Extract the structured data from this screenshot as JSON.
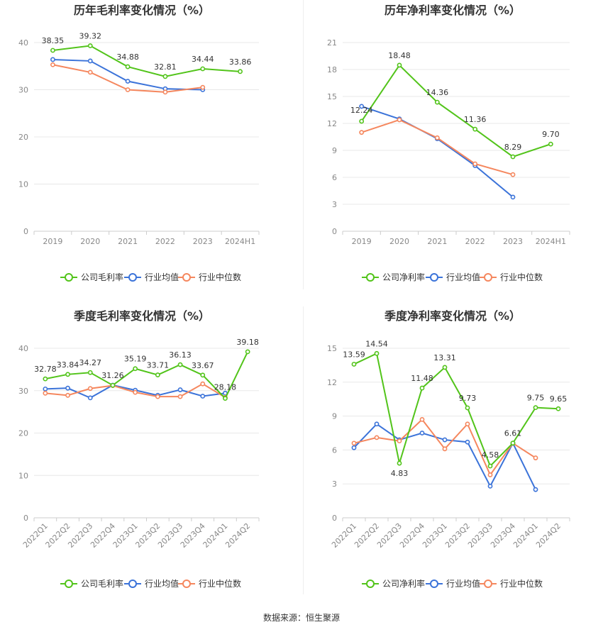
{
  "footer": "数据来源：恒生聚源",
  "colors": {
    "company": "#52c41a",
    "avg": "#3b73d9",
    "median": "#f5875e"
  },
  "chart_data": [
    {
      "type": "line",
      "title": "历年毛利率变化情况（%）",
      "categories": [
        "2019",
        "2020",
        "2021",
        "2022",
        "2023",
        "2024H1"
      ],
      "ylim": [
        0,
        40
      ],
      "yticks": [
        0,
        10,
        20,
        30,
        40
      ],
      "legend": "bottom",
      "series": [
        {
          "name": "公司毛利率",
          "key": "company",
          "values": [
            38.35,
            39.32,
            34.88,
            32.81,
            34.44,
            33.86
          ],
          "labels": [
            "38.35",
            "39.32",
            "34.88",
            "32.81",
            "34.44",
            "33.86"
          ]
        },
        {
          "name": "行业均值",
          "key": "avg",
          "values": [
            36.4,
            36.1,
            31.8,
            30.2,
            30.0,
            null
          ]
        },
        {
          "name": "行业中位数",
          "key": "median",
          "values": [
            35.3,
            33.7,
            30.0,
            29.5,
            30.5,
            null
          ]
        }
      ]
    },
    {
      "type": "line",
      "title": "历年净利率变化情况（%）",
      "categories": [
        "2019",
        "2020",
        "2021",
        "2022",
        "2023",
        "2024H1"
      ],
      "ylim": [
        0,
        21
      ],
      "yticks": [
        0,
        3,
        6,
        9,
        12,
        15,
        18,
        21
      ],
      "legend": "bottom",
      "series": [
        {
          "name": "公司净利率",
          "key": "company",
          "values": [
            12.24,
            18.48,
            14.36,
            11.36,
            8.29,
            9.7
          ],
          "labels": [
            "12.24",
            "18.48",
            "14.36",
            "11.36",
            "8.29",
            "9.70"
          ]
        },
        {
          "name": "行业均值",
          "key": "avg",
          "values": [
            13.9,
            12.5,
            10.3,
            7.3,
            3.8,
            null
          ]
        },
        {
          "name": "行业中位数",
          "key": "median",
          "values": [
            11.0,
            12.4,
            10.4,
            7.5,
            6.3,
            null
          ]
        }
      ]
    },
    {
      "type": "line",
      "title": "季度毛利率变化情况（%）",
      "categories": [
        "2022Q1",
        "2022Q2",
        "2022Q3",
        "2022Q4",
        "2023Q1",
        "2023Q2",
        "2023Q3",
        "2023Q4",
        "2024Q1",
        "2024Q2"
      ],
      "ylim": [
        0,
        40
      ],
      "yticks": [
        0,
        10,
        20,
        30,
        40
      ],
      "legend": "bottom",
      "series": [
        {
          "name": "公司毛利率",
          "key": "company",
          "values": [
            32.78,
            33.84,
            34.27,
            31.26,
            35.19,
            33.71,
            36.13,
            33.67,
            28.18,
            39.18
          ],
          "labels": [
            "32.78",
            "33.84",
            "34.27",
            "31.26",
            "35.19",
            "33.71",
            "36.13",
            "33.67",
            "28.18",
            "39.18"
          ]
        },
        {
          "name": "行业均值",
          "key": "avg",
          "values": [
            30.4,
            30.6,
            28.3,
            31.3,
            30.1,
            28.9,
            30.2,
            28.7,
            29.4,
            null
          ]
        },
        {
          "name": "行业中位数",
          "key": "median",
          "values": [
            29.4,
            28.9,
            30.5,
            31.2,
            29.6,
            28.6,
            28.6,
            31.6,
            28.4,
            null
          ]
        }
      ]
    },
    {
      "type": "line",
      "title": "季度净利率变化情况（%）",
      "categories": [
        "2022Q1",
        "2022Q2",
        "2022Q3",
        "2022Q4",
        "2023Q1",
        "2023Q2",
        "2023Q3",
        "2023Q4",
        "2024Q1",
        "2024Q2"
      ],
      "ylim": [
        0,
        15
      ],
      "yticks": [
        0,
        3,
        6,
        9,
        12,
        15
      ],
      "legend": "bottom",
      "series": [
        {
          "name": "公司净利率",
          "key": "company",
          "values": [
            13.59,
            14.54,
            4.83,
            11.48,
            13.31,
            9.73,
            4.58,
            6.61,
            9.75,
            9.65
          ],
          "labels": [
            "13.59",
            "14.54",
            "4.83",
            "11.48",
            "13.31",
            "9.73",
            "4.58",
            "6.61",
            "9.75",
            "9.65"
          ]
        },
        {
          "name": "行业均值",
          "key": "avg",
          "values": [
            6.2,
            8.3,
            6.9,
            7.5,
            6.9,
            6.7,
            2.8,
            6.6,
            2.5,
            null
          ]
        },
        {
          "name": "行业中位数",
          "key": "median",
          "values": [
            6.6,
            7.1,
            6.8,
            8.7,
            6.1,
            8.3,
            3.8,
            6.6,
            5.3,
            null
          ]
        }
      ]
    }
  ]
}
